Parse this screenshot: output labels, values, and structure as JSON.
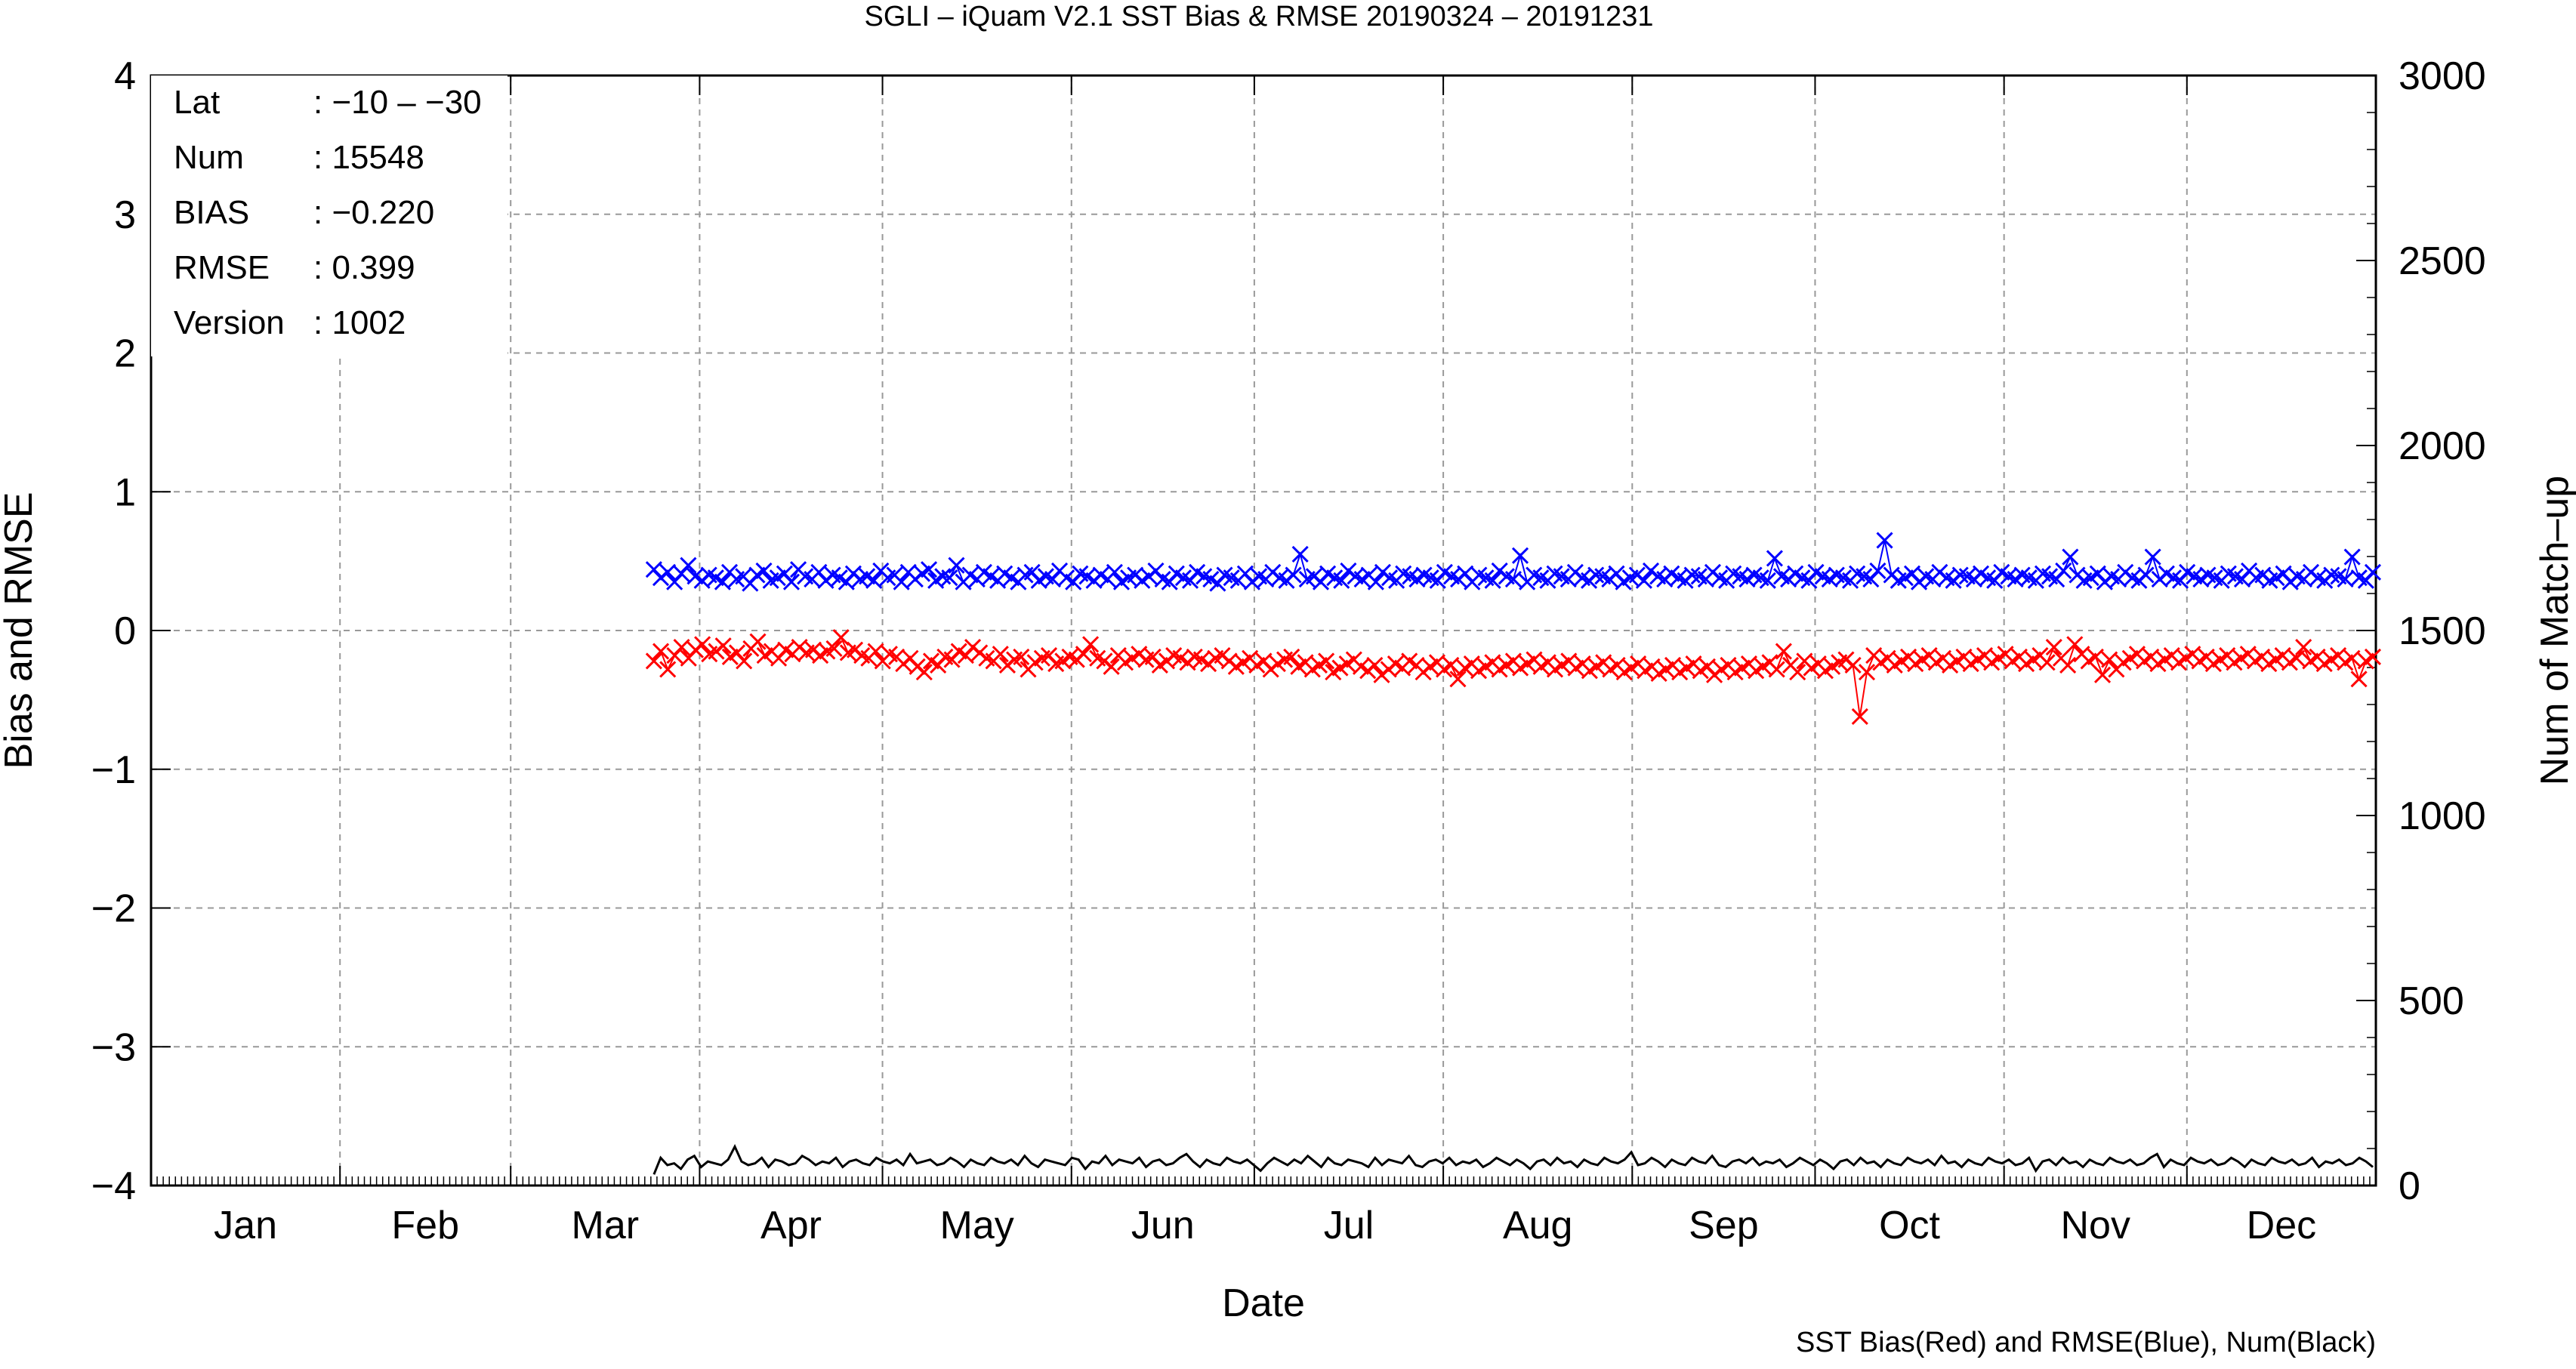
{
  "chart_data": {
    "type": "line",
    "title": "SGLI – iQuam V2.1 SST Bias & RMSE 20190324 – 20191231",
    "xlabel": "Date",
    "ylabel_left": "Bias and RMSE",
    "ylabel_right": "Num of Match–up",
    "footnote": "SST Bias(Red) and RMSE(Blue), Num(Black)",
    "x_range": [
      "2019-01-01",
      "2019-12-31"
    ],
    "x_ticks": [
      "Jan",
      "Feb",
      "Mar",
      "Apr",
      "May",
      "Jun",
      "Jul",
      "Aug",
      "Sep",
      "Oct",
      "Nov",
      "Dec"
    ],
    "y_left_range": [
      -4,
      4
    ],
    "y_left_ticks": [
      "4",
      "3",
      "2",
      "1",
      "0",
      "−1",
      "−2",
      "−3",
      "−4"
    ],
    "y_right_range": [
      0,
      3000
    ],
    "y_right_ticks": [
      "3000",
      "2500",
      "2000",
      "1500",
      "1000",
      "500",
      "0"
    ],
    "grid": true,
    "info_box": [
      {
        "key": "Lat",
        "value": ": −10 – −30"
      },
      {
        "key": "Num",
        "value": ": 15548"
      },
      {
        "key": "BIAS",
        "value": ": −0.220"
      },
      {
        "key": "RMSE",
        "value": ": 0.399"
      },
      {
        "key": "Version",
        "value": ": 1002"
      }
    ],
    "series": [
      {
        "name": "RMSE",
        "axis": "left",
        "color": "#0000ff",
        "marker": "x",
        "x_start": "2019-03-24",
        "x_end": "2019-12-31",
        "values": [
          0.44,
          0.38,
          0.42,
          0.35,
          0.41,
          0.47,
          0.39,
          0.36,
          0.4,
          0.38,
          0.35,
          0.42,
          0.37,
          0.39,
          0.34,
          0.4,
          0.43,
          0.36,
          0.38,
          0.41,
          0.35,
          0.44,
          0.39,
          0.37,
          0.42,
          0.36,
          0.4,
          0.38,
          0.35,
          0.41,
          0.37,
          0.39,
          0.36,
          0.43,
          0.38,
          0.4,
          0.35,
          0.42,
          0.37,
          0.41,
          0.44,
          0.36,
          0.39,
          0.38,
          0.47,
          0.35,
          0.4,
          0.37,
          0.42,
          0.39,
          0.36,
          0.41,
          0.38,
          0.35,
          0.4,
          0.42,
          0.36,
          0.39,
          0.37,
          0.43,
          0.38,
          0.35,
          0.41,
          0.39,
          0.36,
          0.4,
          0.37,
          0.42,
          0.35,
          0.38,
          0.4,
          0.36,
          0.39,
          0.43,
          0.37,
          0.35,
          0.41,
          0.38,
          0.36,
          0.42,
          0.39,
          0.37,
          0.34,
          0.4,
          0.38,
          0.36,
          0.41,
          0.35,
          0.39,
          0.37,
          0.42,
          0.38,
          0.36,
          0.4,
          0.55,
          0.37,
          0.39,
          0.35,
          0.41,
          0.38,
          0.36,
          0.43,
          0.39,
          0.37,
          0.4,
          0.35,
          0.42,
          0.38,
          0.36,
          0.41,
          0.39,
          0.37,
          0.4,
          0.38,
          0.36,
          0.42,
          0.39,
          0.37,
          0.41,
          0.35,
          0.4,
          0.38,
          0.36,
          0.43,
          0.39,
          0.37,
          0.54,
          0.35,
          0.4,
          0.38,
          0.36,
          0.41,
          0.39,
          0.37,
          0.42,
          0.38,
          0.36,
          0.4,
          0.39,
          0.37,
          0.41,
          0.35,
          0.38,
          0.4,
          0.36,
          0.43,
          0.39,
          0.37,
          0.41,
          0.38,
          0.36,
          0.4,
          0.39,
          0.37,
          0.42,
          0.38,
          0.36,
          0.41,
          0.39,
          0.37,
          0.4,
          0.38,
          0.36,
          0.52,
          0.39,
          0.37,
          0.41,
          0.38,
          0.36,
          0.42,
          0.39,
          0.37,
          0.4,
          0.38,
          0.36,
          0.41,
          0.39,
          0.37,
          0.43,
          0.65,
          0.4,
          0.36,
          0.38,
          0.41,
          0.35,
          0.39,
          0.37,
          0.42,
          0.38,
          0.36,
          0.4,
          0.39,
          0.37,
          0.41,
          0.38,
          0.36,
          0.42,
          0.39,
          0.37,
          0.4,
          0.38,
          0.36,
          0.41,
          0.39,
          0.37,
          0.43,
          0.53,
          0.4,
          0.36,
          0.38,
          0.41,
          0.35,
          0.39,
          0.37,
          0.42,
          0.38,
          0.36,
          0.4,
          0.53,
          0.37,
          0.41,
          0.38,
          0.36,
          0.42,
          0.39,
          0.37,
          0.4,
          0.38,
          0.36,
          0.41,
          0.39,
          0.37,
          0.43,
          0.38,
          0.4,
          0.36,
          0.38,
          0.41,
          0.35,
          0.39,
          0.37,
          0.42,
          0.38,
          0.36,
          0.4,
          0.39,
          0.37,
          0.53,
          0.38,
          0.36,
          0.42
        ]
      },
      {
        "name": "BIAS",
        "axis": "left",
        "color": "#ff0000",
        "marker": "x",
        "x_start": "2019-03-24",
        "x_end": "2019-12-31",
        "values": [
          -0.22,
          -0.15,
          -0.28,
          -0.18,
          -0.12,
          -0.2,
          -0.14,
          -0.1,
          -0.17,
          -0.15,
          -0.11,
          -0.19,
          -0.16,
          -0.22,
          -0.13,
          -0.08,
          -0.18,
          -0.15,
          -0.2,
          -0.14,
          -0.17,
          -0.12,
          -0.16,
          -0.14,
          -0.18,
          -0.15,
          -0.13,
          -0.05,
          -0.16,
          -0.14,
          -0.18,
          -0.2,
          -0.15,
          -0.22,
          -0.17,
          -0.19,
          -0.24,
          -0.2,
          -0.26,
          -0.3,
          -0.22,
          -0.25,
          -0.19,
          -0.21,
          -0.15,
          -0.18,
          -0.12,
          -0.16,
          -0.2,
          -0.22,
          -0.17,
          -0.25,
          -0.21,
          -0.19,
          -0.28,
          -0.23,
          -0.2,
          -0.18,
          -0.24,
          -0.22,
          -0.19,
          -0.21,
          -0.17,
          -0.1,
          -0.2,
          -0.22,
          -0.26,
          -0.18,
          -0.23,
          -0.2,
          -0.17,
          -0.21,
          -0.19,
          -0.25,
          -0.22,
          -0.18,
          -0.2,
          -0.23,
          -0.19,
          -0.21,
          -0.24,
          -0.2,
          -0.18,
          -0.22,
          -0.26,
          -0.23,
          -0.2,
          -0.25,
          -0.22,
          -0.28,
          -0.24,
          -0.21,
          -0.19,
          -0.26,
          -0.23,
          -0.28,
          -0.25,
          -0.22,
          -0.3,
          -0.27,
          -0.24,
          -0.21,
          -0.26,
          -0.29,
          -0.25,
          -0.32,
          -0.28,
          -0.24,
          -0.27,
          -0.22,
          -0.25,
          -0.3,
          -0.26,
          -0.23,
          -0.28,
          -0.25,
          -0.35,
          -0.27,
          -0.24,
          -0.29,
          -0.26,
          -0.23,
          -0.28,
          -0.25,
          -0.22,
          -0.27,
          -0.24,
          -0.21,
          -0.26,
          -0.23,
          -0.28,
          -0.25,
          -0.22,
          -0.27,
          -0.24,
          -0.29,
          -0.26,
          -0.23,
          -0.28,
          -0.25,
          -0.3,
          -0.27,
          -0.24,
          -0.29,
          -0.26,
          -0.31,
          -0.28,
          -0.25,
          -0.3,
          -0.27,
          -0.24,
          -0.29,
          -0.26,
          -0.32,
          -0.28,
          -0.25,
          -0.3,
          -0.27,
          -0.24,
          -0.29,
          -0.26,
          -0.23,
          -0.28,
          -0.15,
          -0.25,
          -0.3,
          -0.22,
          -0.27,
          -0.24,
          -0.29,
          -0.26,
          -0.23,
          -0.21,
          -0.25,
          -0.62,
          -0.3,
          -0.18,
          -0.23,
          -0.2,
          -0.25,
          -0.22,
          -0.19,
          -0.24,
          -0.21,
          -0.18,
          -0.23,
          -0.2,
          -0.25,
          -0.22,
          -0.19,
          -0.24,
          -0.21,
          -0.18,
          -0.23,
          -0.2,
          -0.17,
          -0.22,
          -0.19,
          -0.24,
          -0.21,
          -0.18,
          -0.23,
          -0.12,
          -0.2,
          -0.25,
          -0.1,
          -0.17,
          -0.22,
          -0.19,
          -0.32,
          -0.21,
          -0.28,
          -0.23,
          -0.2,
          -0.17,
          -0.22,
          -0.19,
          -0.24,
          -0.21,
          -0.18,
          -0.23,
          -0.2,
          -0.17,
          -0.22,
          -0.19,
          -0.24,
          -0.21,
          -0.18,
          -0.23,
          -0.2,
          -0.17,
          -0.22,
          -0.19,
          -0.24,
          -0.21,
          -0.18,
          -0.23,
          -0.2,
          -0.12,
          -0.22,
          -0.19,
          -0.24,
          -0.21,
          -0.18,
          -0.23,
          -0.2,
          -0.35,
          -0.22,
          -0.19
        ]
      },
      {
        "name": "Num",
        "axis": "right",
        "color": "#000000",
        "marker": "none",
        "x_start": "2019-03-24",
        "x_end": "2019-12-31",
        "values": [
          30,
          75,
          55,
          60,
          45,
          70,
          80,
          50,
          65,
          60,
          55,
          70,
          105,
          65,
          55,
          60,
          75,
          50,
          70,
          65,
          55,
          60,
          80,
          70,
          55,
          65,
          60,
          75,
          50,
          65,
          70,
          60,
          55,
          75,
          65,
          60,
          70,
          55,
          85,
          60,
          65,
          70,
          55,
          60,
          75,
          65,
          50,
          70,
          60,
          55,
          75,
          65,
          60,
          70,
          55,
          80,
          60,
          50,
          70,
          65,
          60,
          55,
          75,
          70,
          45,
          65,
          60,
          80,
          55,
          70,
          65,
          60,
          75,
          50,
          65,
          70,
          55,
          60,
          75,
          85,
          65,
          50,
          70,
          60,
          55,
          75,
          65,
          60,
          70,
          55,
          40,
          60,
          75,
          65,
          55,
          70,
          60,
          80,
          65,
          50,
          75,
          60,
          55,
          70,
          65,
          60,
          50,
          75,
          55,
          70,
          65,
          60,
          80,
          55,
          50,
          65,
          70,
          60,
          75,
          55,
          65,
          60,
          70,
          50,
          60,
          75,
          65,
          55,
          70,
          60,
          45,
          65,
          70,
          55,
          75,
          60,
          65,
          50,
          70,
          60,
          55,
          75,
          65,
          60,
          70,
          90,
          55,
          60,
          75,
          65,
          50,
          70,
          60,
          55,
          75,
          65,
          60,
          80,
          55,
          50,
          65,
          70,
          60,
          75,
          55,
          65,
          60,
          70,
          50,
          60,
          75,
          65,
          55,
          70,
          60,
          45,
          65,
          70,
          55,
          75,
          60,
          65,
          50,
          70,
          60,
          55,
          75,
          65,
          60,
          70,
          55,
          80,
          60,
          65,
          50,
          70,
          60,
          55,
          75,
          65,
          60,
          70,
          55,
          60,
          75,
          40,
          65,
          70,
          55,
          75,
          60,
          65,
          50,
          70,
          60,
          55,
          75,
          65,
          60,
          70,
          55,
          60,
          75,
          85,
          50,
          70,
          60,
          55,
          75,
          65,
          60,
          70,
          55,
          60,
          75,
          65,
          50,
          70,
          60,
          55,
          75,
          65,
          60,
          70,
          55,
          60,
          75,
          50,
          65,
          60,
          70,
          55,
          60,
          75,
          65,
          50
        ]
      }
    ]
  }
}
